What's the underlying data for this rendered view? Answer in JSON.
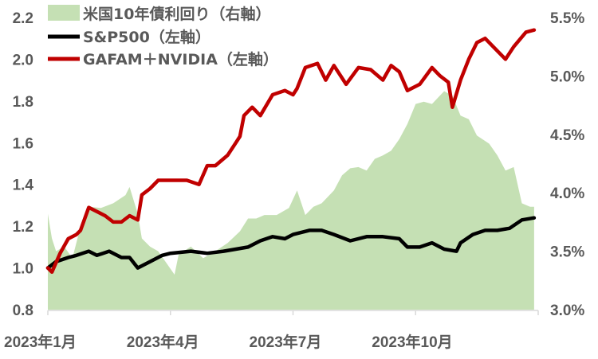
{
  "chart_data": {
    "type": "line+area",
    "title": "",
    "x_unit": "months since 2023-01-01",
    "xlim": [
      0,
      12
    ],
    "x_ticks": [
      {
        "value": 0,
        "label": "2023年1月"
      },
      {
        "value": 3,
        "label": "2023年4月"
      },
      {
        "value": 6,
        "label": "2023年7月"
      },
      {
        "value": 9,
        "label": "2023年10月"
      }
    ],
    "y_left": {
      "lim": [
        0.8,
        2.2
      ],
      "ticks": [
        "0.8",
        "1.0",
        "1.2",
        "1.4",
        "1.6",
        "1.8",
        "2.0",
        "2.2"
      ]
    },
    "y_right": {
      "lim": [
        3.0,
        5.5
      ],
      "ticks": [
        "3.0%",
        "3.5%",
        "4.0%",
        "4.5%",
        "5.0%",
        "5.5%"
      ]
    },
    "legend_position": "top-left",
    "series": [
      {
        "name": "米国10年債利回り（右軸）",
        "type": "area",
        "axis": "right",
        "color": "#c5e0b4",
        "points": [
          [
            0,
            3.82
          ],
          [
            0.1,
            3.61
          ],
          [
            0.2,
            3.5
          ],
          [
            0.4,
            3.54
          ],
          [
            0.6,
            3.44
          ],
          [
            0.8,
            3.71
          ],
          [
            1.0,
            3.88
          ],
          [
            1.3,
            3.87
          ],
          [
            1.6,
            3.91
          ],
          [
            1.9,
            3.98
          ],
          [
            2.0,
            4.05
          ],
          [
            2.2,
            3.82
          ],
          [
            2.3,
            3.61
          ],
          [
            2.5,
            3.54
          ],
          [
            2.7,
            3.5
          ],
          [
            2.9,
            3.4
          ],
          [
            3.1,
            3.3
          ],
          [
            3.2,
            3.47
          ],
          [
            3.5,
            3.54
          ],
          [
            3.8,
            3.44
          ],
          [
            4.1,
            3.5
          ],
          [
            4.4,
            3.57
          ],
          [
            4.7,
            3.67
          ],
          [
            4.9,
            3.78
          ],
          [
            5.1,
            3.78
          ],
          [
            5.3,
            3.81
          ],
          [
            5.6,
            3.81
          ],
          [
            5.9,
            3.87
          ],
          [
            6.1,
            4.02
          ],
          [
            6.3,
            3.81
          ],
          [
            6.5,
            3.88
          ],
          [
            6.7,
            3.91
          ],
          [
            7.0,
            4.02
          ],
          [
            7.2,
            4.15
          ],
          [
            7.4,
            4.21
          ],
          [
            7.6,
            4.22
          ],
          [
            7.8,
            4.19
          ],
          [
            8.0,
            4.29
          ],
          [
            8.2,
            4.32
          ],
          [
            8.4,
            4.36
          ],
          [
            8.6,
            4.46
          ],
          [
            8.8,
            4.59
          ],
          [
            9.0,
            4.76
          ],
          [
            9.2,
            4.78
          ],
          [
            9.4,
            4.76
          ],
          [
            9.7,
            4.87
          ],
          [
            9.9,
            4.83
          ],
          [
            10.1,
            4.66
          ],
          [
            10.3,
            4.63
          ],
          [
            10.5,
            4.49
          ],
          [
            10.8,
            4.42
          ],
          [
            11.0,
            4.32
          ],
          [
            11.2,
            4.19
          ],
          [
            11.4,
            4.22
          ],
          [
            11.6,
            3.91
          ],
          [
            11.8,
            3.88
          ],
          [
            11.9,
            3.88
          ]
        ]
      },
      {
        "name": "S&P500（左軸）",
        "type": "line",
        "axis": "left",
        "color": "#000000",
        "points": [
          [
            0,
            1.0
          ],
          [
            0.2,
            1.03
          ],
          [
            0.5,
            1.05
          ],
          [
            0.7,
            1.06
          ],
          [
            1.0,
            1.08
          ],
          [
            1.2,
            1.06
          ],
          [
            1.5,
            1.08
          ],
          [
            1.8,
            1.05
          ],
          [
            2.0,
            1.05
          ],
          [
            2.2,
            1.0
          ],
          [
            2.5,
            1.03
          ],
          [
            2.8,
            1.06
          ],
          [
            3.0,
            1.07
          ],
          [
            3.5,
            1.08
          ],
          [
            3.9,
            1.07
          ],
          [
            4.3,
            1.08
          ],
          [
            4.6,
            1.09
          ],
          [
            4.9,
            1.1
          ],
          [
            5.2,
            1.13
          ],
          [
            5.5,
            1.15
          ],
          [
            5.8,
            1.14
          ],
          [
            6.0,
            1.16
          ],
          [
            6.4,
            1.18
          ],
          [
            6.7,
            1.18
          ],
          [
            7.0,
            1.16
          ],
          [
            7.4,
            1.13
          ],
          [
            7.8,
            1.15
          ],
          [
            8.2,
            1.15
          ],
          [
            8.6,
            1.14
          ],
          [
            8.8,
            1.1
          ],
          [
            9.1,
            1.1
          ],
          [
            9.4,
            1.12
          ],
          [
            9.7,
            1.09
          ],
          [
            10.0,
            1.08
          ],
          [
            10.1,
            1.12
          ],
          [
            10.4,
            1.16
          ],
          [
            10.7,
            1.18
          ],
          [
            11.0,
            1.18
          ],
          [
            11.3,
            1.19
          ],
          [
            11.6,
            1.23
          ],
          [
            11.9,
            1.24
          ]
        ]
      },
      {
        "name": "GAFAM＋NVIDIA（左軸）",
        "type": "line",
        "axis": "left",
        "color": "#c00000",
        "points": [
          [
            0,
            1.0
          ],
          [
            0.1,
            0.98
          ],
          [
            0.3,
            1.07
          ],
          [
            0.5,
            1.14
          ],
          [
            0.7,
            1.16
          ],
          [
            0.8,
            1.18
          ],
          [
            1.0,
            1.29
          ],
          [
            1.2,
            1.27
          ],
          [
            1.4,
            1.25
          ],
          [
            1.6,
            1.22
          ],
          [
            1.8,
            1.22
          ],
          [
            2.0,
            1.25
          ],
          [
            2.2,
            1.23
          ],
          [
            2.3,
            1.35
          ],
          [
            2.5,
            1.38
          ],
          [
            2.7,
            1.42
          ],
          [
            3.0,
            1.42
          ],
          [
            3.4,
            1.42
          ],
          [
            3.7,
            1.4
          ],
          [
            3.9,
            1.49
          ],
          [
            4.1,
            1.49
          ],
          [
            4.4,
            1.54
          ],
          [
            4.6,
            1.6
          ],
          [
            4.7,
            1.63
          ],
          [
            4.8,
            1.73
          ],
          [
            5.0,
            1.77
          ],
          [
            5.2,
            1.73
          ],
          [
            5.5,
            1.83
          ],
          [
            5.8,
            1.85
          ],
          [
            6.0,
            1.83
          ],
          [
            6.1,
            1.86
          ],
          [
            6.3,
            1.96
          ],
          [
            6.6,
            1.98
          ],
          [
            6.8,
            1.9
          ],
          [
            7.0,
            1.97
          ],
          [
            7.3,
            1.88
          ],
          [
            7.6,
            1.96
          ],
          [
            7.9,
            1.95
          ],
          [
            8.2,
            1.9
          ],
          [
            8.4,
            1.97
          ],
          [
            8.6,
            1.94
          ],
          [
            8.8,
            1.85
          ],
          [
            9.1,
            1.88
          ],
          [
            9.4,
            1.96
          ],
          [
            9.6,
            1.92
          ],
          [
            9.8,
            1.89
          ],
          [
            9.9,
            1.77
          ],
          [
            10.1,
            1.9
          ],
          [
            10.3,
            2.0
          ],
          [
            10.5,
            2.08
          ],
          [
            10.7,
            2.1
          ],
          [
            10.9,
            2.06
          ],
          [
            11.2,
            2.0
          ],
          [
            11.4,
            2.06
          ],
          [
            11.7,
            2.13
          ],
          [
            11.9,
            2.14
          ]
        ]
      }
    ]
  }
}
